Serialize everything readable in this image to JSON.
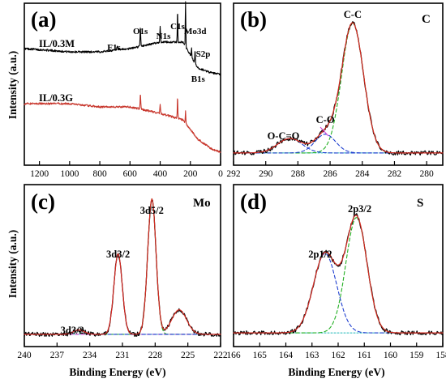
{
  "colors": {
    "experimental": "#000000",
    "fit": "#d42a20",
    "component_green": "#22b022",
    "component_blue": "#1f3fd0",
    "component_magenta": "#d23cd2",
    "background": "#1fb8b8",
    "envelope_purple": "#8a4bd4",
    "spectrum_IL03G": "#c8372d"
  },
  "y_axis_title": "Intensity (a.u.)",
  "x_axis_title": "Binding Energy (eV)",
  "chart_data": [
    {
      "panel": "(a)",
      "type": "line",
      "xlabel": "",
      "ylabel": "Intensity (a.u.)",
      "xlim": [
        1300,
        0
      ],
      "xticks": [
        "1200",
        "1000",
        "800",
        "600",
        "400",
        "200",
        "0"
      ],
      "series": [
        {
          "name": "IL/0.3M",
          "color": "#000000",
          "baseline": [
            [
              1300,
              0.72
            ],
            [
              1000,
              0.7
            ],
            [
              800,
              0.7
            ],
            [
              600,
              0.72
            ],
            [
              400,
              0.76
            ],
            [
              250,
              0.76
            ],
            [
              150,
              0.6
            ],
            [
              60,
              0.57
            ],
            [
              0,
              0.56
            ]
          ],
          "peaks": [
            [
              531,
              0.12,
              5
            ],
            [
              400,
              0.1,
              5
            ],
            [
              285,
              0.2,
              4
            ],
            [
              232,
              0.28,
              4
            ],
            [
              169,
              0.08,
              4
            ],
            [
              192,
              0.06,
              4
            ],
            [
              685,
              0.02,
              6
            ]
          ]
        },
        {
          "name": "IL/0.3G",
          "color": "#c8372d",
          "baseline": [
            [
              1300,
              0.38
            ],
            [
              1000,
              0.38
            ],
            [
              800,
              0.36
            ],
            [
              600,
              0.36
            ],
            [
              400,
              0.32
            ],
            [
              250,
              0.28
            ],
            [
              150,
              0.16
            ],
            [
              60,
              0.1
            ],
            [
              0,
              0.08
            ]
          ],
          "peaks": [
            [
              531,
              0.1,
              5
            ],
            [
              400,
              0.06,
              5
            ],
            [
              285,
              0.14,
              4
            ],
            [
              232,
              0.08,
              4
            ]
          ]
        }
      ],
      "annotations": [
        {
          "text": "F1s",
          "x": 685
        },
        {
          "text": "O1s",
          "x": 531
        },
        {
          "text": "N1s",
          "x": 400
        },
        {
          "text": "C1s",
          "x": 285
        },
        {
          "text": "Mo3d",
          "x": 232
        },
        {
          "text": "S2p",
          "x": 169
        },
        {
          "text": "B1s",
          "x": 192
        }
      ]
    },
    {
      "panel": "(b)",
      "element": "C",
      "type": "line",
      "xlim": [
        292,
        279
      ],
      "xticks": [
        "292",
        "290",
        "288",
        "286",
        "284",
        "282",
        "280"
      ],
      "ylim": [
        0,
        1
      ],
      "baseline": 0.04,
      "components": [
        {
          "label": "C-C",
          "center": 284.6,
          "amp": 0.9,
          "fwhm": 1.6,
          "color": "#22b022"
        },
        {
          "label": "C-O",
          "center": 286.3,
          "amp": 0.13,
          "fwhm": 1.5,
          "color": "#1f3fd0"
        },
        {
          "label": "O-C=O",
          "center": 288.5,
          "amp": 0.1,
          "fwhm": 1.8,
          "color": "#1f3fd0"
        }
      ],
      "peak_labels": [
        {
          "text": "C-C",
          "x": 284.6
        },
        {
          "text": "C-O",
          "x": 286.3
        },
        {
          "text": "O-C=O",
          "x": 288.5
        }
      ]
    },
    {
      "panel": "(c)",
      "element": "Mo",
      "type": "line",
      "xlim": [
        240,
        222
      ],
      "xticks": [
        "240",
        "237",
        "234",
        "231",
        "228",
        "225",
        "222"
      ],
      "ylim": [
        0,
        1
      ],
      "baseline": 0.04,
      "components": [
        {
          "label": "3d5/2",
          "center": 228.3,
          "amp": 0.94,
          "fwhm": 0.9,
          "color": "#22b022"
        },
        {
          "label": "3d3/2",
          "center": 231.4,
          "amp": 0.56,
          "fwhm": 0.9,
          "color": "#d23cd2"
        },
        {
          "label": "3d3/2",
          "center": 235.0,
          "amp": 0.03,
          "fwhm": 1.2,
          "color": "#1f3fd0"
        },
        {
          "label": "",
          "center": 225.8,
          "amp": 0.17,
          "fwhm": 1.6,
          "color": "#000000"
        }
      ],
      "peak_labels": [
        {
          "text": "3d5/2",
          "x": 228.3
        },
        {
          "text": "3d3/2",
          "x": 231.4
        },
        {
          "text": "3d3/2",
          "x": 235.0
        }
      ]
    },
    {
      "panel": "(d)",
      "element": "S",
      "type": "line",
      "xlim": [
        166,
        158
      ],
      "xticks": [
        "166",
        "165",
        "164",
        "163",
        "162",
        "161",
        "160",
        "159",
        "158"
      ],
      "ylim": [
        0,
        1
      ],
      "baseline": 0.05,
      "components": [
        {
          "label": "2p3/2",
          "center": 161.3,
          "amp": 0.8,
          "fwhm": 0.95,
          "color": "#22b022"
        },
        {
          "label": "2p1/2",
          "center": 162.5,
          "amp": 0.55,
          "fwhm": 1.05,
          "color": "#1f3fd0"
        }
      ],
      "peak_labels": [
        {
          "text": "2p3/2",
          "x": 161.3
        },
        {
          "text": "2p1/2",
          "x": 162.5
        }
      ]
    }
  ]
}
